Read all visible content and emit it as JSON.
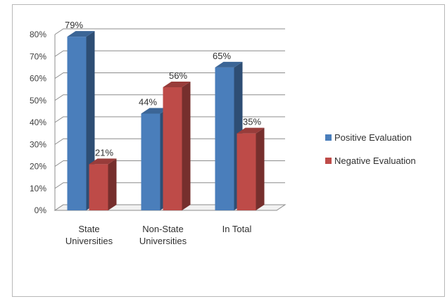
{
  "chart_data": {
    "type": "bar",
    "title": "",
    "xlabel": "",
    "ylabel": "",
    "ylim": [
      0,
      0.8
    ],
    "yticks": [
      "0%",
      "10%",
      "20%",
      "30%",
      "40%",
      "50%",
      "60%",
      "70%",
      "80%"
    ],
    "categories": [
      [
        "State",
        "Universities"
      ],
      [
        "Non-State",
        "Universities"
      ],
      [
        "In Total"
      ]
    ],
    "series": [
      {
        "name": "Positive Evaluation",
        "values": [
          0.79,
          0.44,
          0.65
        ],
        "labels": [
          "79%",
          "44%",
          "65%"
        ],
        "color": "#4a7ebb"
      },
      {
        "name": "Negative Evaluation",
        "values": [
          0.21,
          0.56,
          0.35
        ],
        "labels": [
          "21%",
          "56%",
          "35%"
        ],
        "color": "#be4b48"
      }
    ],
    "grid": true,
    "legend_position": "right",
    "style": "3d-columns"
  }
}
